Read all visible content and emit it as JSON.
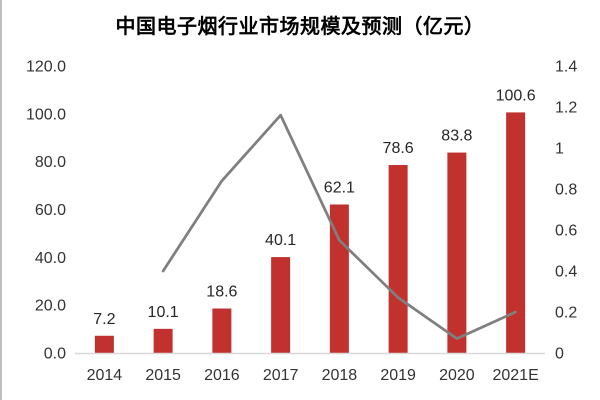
{
  "chart_data": {
    "type": "bar",
    "title": "中国电子烟行业市场规模及预测（亿元）",
    "categories": [
      "2014",
      "2015",
      "2016",
      "2017",
      "2018",
      "2019",
      "2020",
      "2021E"
    ],
    "series": [
      {
        "name": "market-size-bars",
        "type": "bar",
        "values": [
          7.2,
          10.1,
          18.6,
          40.1,
          62.1,
          78.6,
          83.8,
          100.6
        ],
        "data_labels": [
          "7.2",
          "10.1",
          "18.6",
          "40.1",
          "62.1",
          "78.6",
          "83.8",
          "100.6"
        ],
        "axis": "left"
      },
      {
        "name": "growth-rate-line",
        "type": "line",
        "values": [
          null,
          0.4,
          0.84,
          1.16,
          0.55,
          0.27,
          0.07,
          0.2
        ],
        "axis": "right"
      }
    ],
    "left_axis": {
      "min": 0,
      "max": 120,
      "ticks": [
        "120.0",
        "100.0",
        "80.0",
        "60.0",
        "40.0",
        "20.0",
        "0.0"
      ]
    },
    "right_axis": {
      "min": 0,
      "max": 1.4,
      "ticks": [
        "1.4",
        "1.2",
        "1",
        "0.8",
        "0.6",
        "0.4",
        "0.2",
        "0"
      ]
    },
    "grid": false,
    "legend": "none",
    "colors": {
      "bar": "#C1322F",
      "line": "#7F7F7F",
      "axis_line": "#D9D9D9",
      "tick_text": "#333333",
      "data_label_text": "#262626",
      "title_text": "#000000"
    }
  }
}
